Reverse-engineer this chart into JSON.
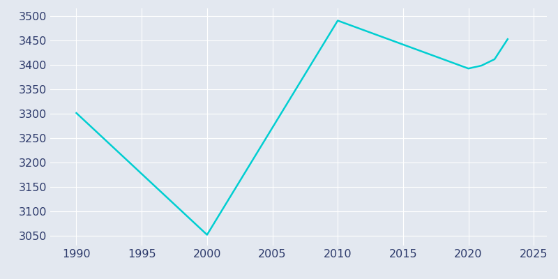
{
  "years": [
    1990,
    2000,
    2010,
    2020,
    2021,
    2022,
    2023
  ],
  "population": [
    3301,
    3052,
    3490,
    3392,
    3398,
    3411,
    3452
  ],
  "line_color": "#00CED1",
  "bg_color": "#E3E8F0",
  "grid_color": "#ffffff",
  "xlim": [
    1988,
    2026
  ],
  "ylim": [
    3030,
    3515
  ],
  "xticks": [
    1990,
    1995,
    2000,
    2005,
    2010,
    2015,
    2020,
    2025
  ],
  "yticks": [
    3050,
    3100,
    3150,
    3200,
    3250,
    3300,
    3350,
    3400,
    3450,
    3500
  ],
  "tick_label_color": "#2d3a6b",
  "tick_fontsize": 11.5,
  "linewidth": 1.8
}
